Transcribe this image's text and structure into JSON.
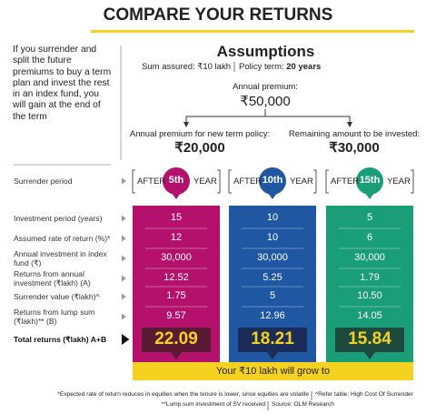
{
  "title": "COMPARE YOUR RETURNS",
  "intro": "If you surrender and split the future premiums to buy a term plan and invest the rest in an index fund, you will gain at the end of the term",
  "assumptions": {
    "heading": "Assumptions",
    "sum_assured": "Sum assured: ₹10 lakh",
    "policy_term_label": "Policy term:",
    "policy_term": "20 years",
    "annual_premium_label": "Annual premium:",
    "annual_premium": "₹50,000",
    "term_policy_label": "Annual premium for new term policy:",
    "term_policy_amount": "₹20,000",
    "invest_label": "Remaining amount to be invested:",
    "invest_amount": "₹30,000"
  },
  "row_labels": [
    "Surrender period",
    "Investment period (years)",
    "Assumed rate of return (%)*",
    "Annual investment in index fund (₹)",
    "Returns from annual investment (₹lakh) (A)",
    "Surrender value (₹lakh)^",
    "Returns from lump sum (₹lakh)** (B)",
    "Total returns (₹lakh) A+B"
  ],
  "columns": [
    {
      "prefix": "AFTER",
      "period": "5th",
      "suffix": "YEAR",
      "values": [
        "15",
        "12",
        "30,000",
        "12.52",
        "1.75",
        "9.57"
      ],
      "total": "22.09"
    },
    {
      "prefix": "AFTER",
      "period": "10th",
      "suffix": "YEAR",
      "values": [
        "10",
        "10",
        "30,000",
        "5.25",
        "5",
        "12.96"
      ],
      "total": "18.21"
    },
    {
      "prefix": "AFTER",
      "period": "15th",
      "suffix": "YEAR",
      "values": [
        "5",
        "6",
        "30,000",
        "1.79",
        "10.50",
        "14.05"
      ],
      "total": "15.84"
    }
  ],
  "banner": "Your ₹10 lakh will grow to",
  "footnotes": [
    "*Expected rate of return reduces in equities when the tenure is lower, since equities are volatile",
    "^Refer table: High Cost Of Surrender",
    "**Lump sum investment of SV received",
    "Source: OLM Research"
  ]
}
